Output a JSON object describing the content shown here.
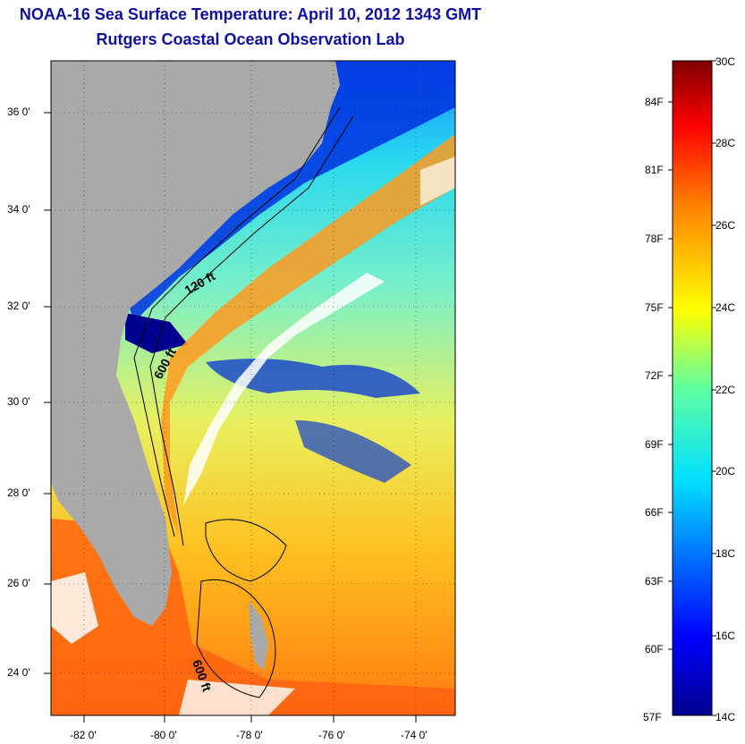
{
  "title": {
    "line1": "NOAA-16 Sea Surface Temperature:  April 10, 2012 1343 GMT",
    "line2": "Rutgers Coastal Ocean Observation Lab"
  },
  "axes": {
    "lat_labels": [
      "36 0'",
      "34 0'",
      "32 0'",
      "30 0'",
      "28 0'",
      "26 0'",
      "24 0'"
    ],
    "lon_labels": [
      "-82 0'",
      "-80 0'",
      "-78 0'",
      "-76 0'",
      "-74 0'"
    ]
  },
  "contours": {
    "label_120": "120 ft",
    "label_600a": "600 ft",
    "label_600b": "600 ft"
  },
  "colorbar": {
    "celsius": [
      "30C",
      "28C",
      "26C",
      "24C",
      "22C",
      "20C",
      "18C",
      "16C",
      "14C"
    ],
    "fahrenheit": [
      "84F",
      "81F",
      "78F",
      "75F",
      "72F",
      "69F",
      "66F",
      "63F",
      "60F",
      "57F"
    ],
    "range_c": [
      14,
      30
    ]
  },
  "colors": {
    "land": "#a9a9a9",
    "title": "#1010a0",
    "cold": "#00008f",
    "warm": "#7f0000"
  }
}
